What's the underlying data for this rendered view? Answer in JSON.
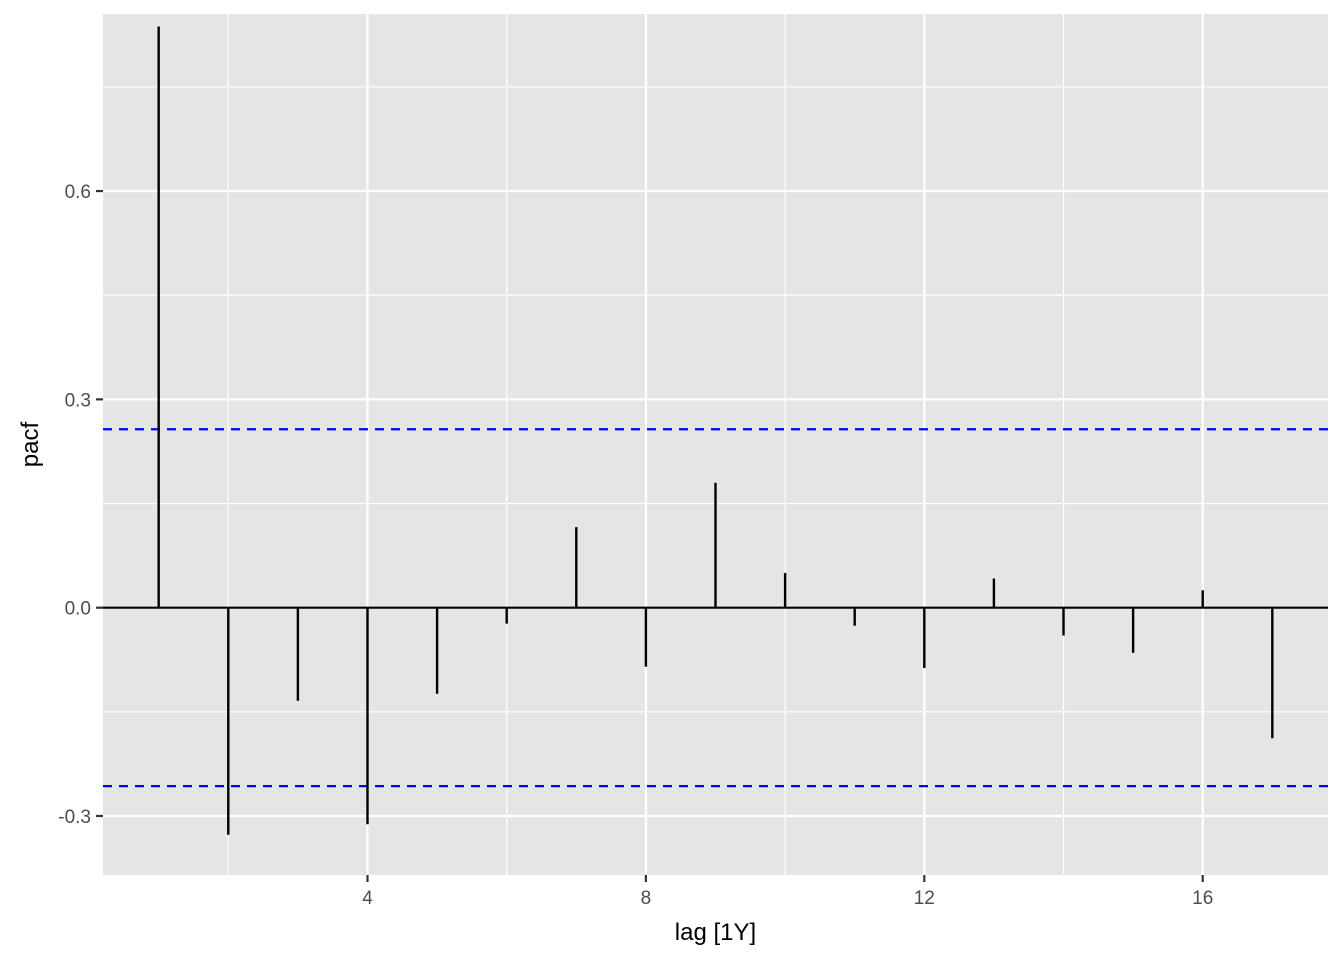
{
  "chart_data": {
    "type": "bar",
    "xlabel": "lag [1Y]",
    "ylabel": "pacf",
    "x_ticks": [
      4,
      8,
      12,
      16
    ],
    "x_tick_labels": [
      "4",
      "8",
      "12",
      "16"
    ],
    "y_ticks": [
      -0.3,
      0.0,
      0.3,
      0.6
    ],
    "y_tick_labels": [
      "-0.3",
      "0.0",
      "0.3",
      "0.6"
    ],
    "xlim": [
      0.2,
      17.8
    ],
    "ylim": [
      -0.385,
      0.855
    ],
    "grid": true,
    "lags": [
      1,
      2,
      3,
      4,
      5,
      6,
      7,
      8,
      9,
      10,
      11,
      12,
      13,
      14,
      15,
      16,
      17
    ],
    "values": [
      0.837,
      -0.327,
      -0.134,
      -0.312,
      -0.124,
      -0.023,
      0.116,
      -0.085,
      0.18,
      0.05,
      -0.026,
      -0.087,
      0.042,
      -0.04,
      -0.065,
      0.025,
      -0.188
    ],
    "confidence_bound": 0.257,
    "colors": {
      "panel": "#e5e5e5",
      "grid": "#ffffff",
      "bar": "#000000",
      "bound": "#0000ff"
    }
  }
}
